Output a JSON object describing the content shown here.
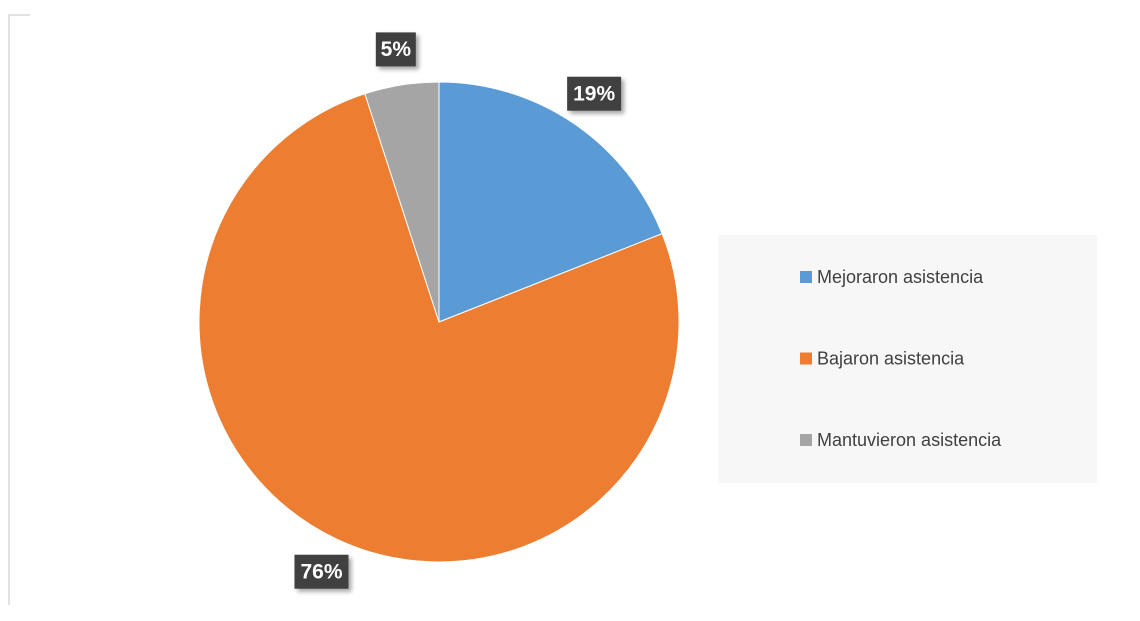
{
  "chart_data": {
    "type": "pie",
    "categories": [
      "Mejoraron asistencia",
      "Bajaron asistencia",
      "Mantuvieron asistencia"
    ],
    "values": [
      19,
      76,
      5
    ],
    "value_labels": [
      "19%",
      "76%",
      "5%"
    ],
    "colors": [
      "#5b9bd5",
      "#ed7d31",
      "#a5a5a5"
    ],
    "legend": "right"
  }
}
